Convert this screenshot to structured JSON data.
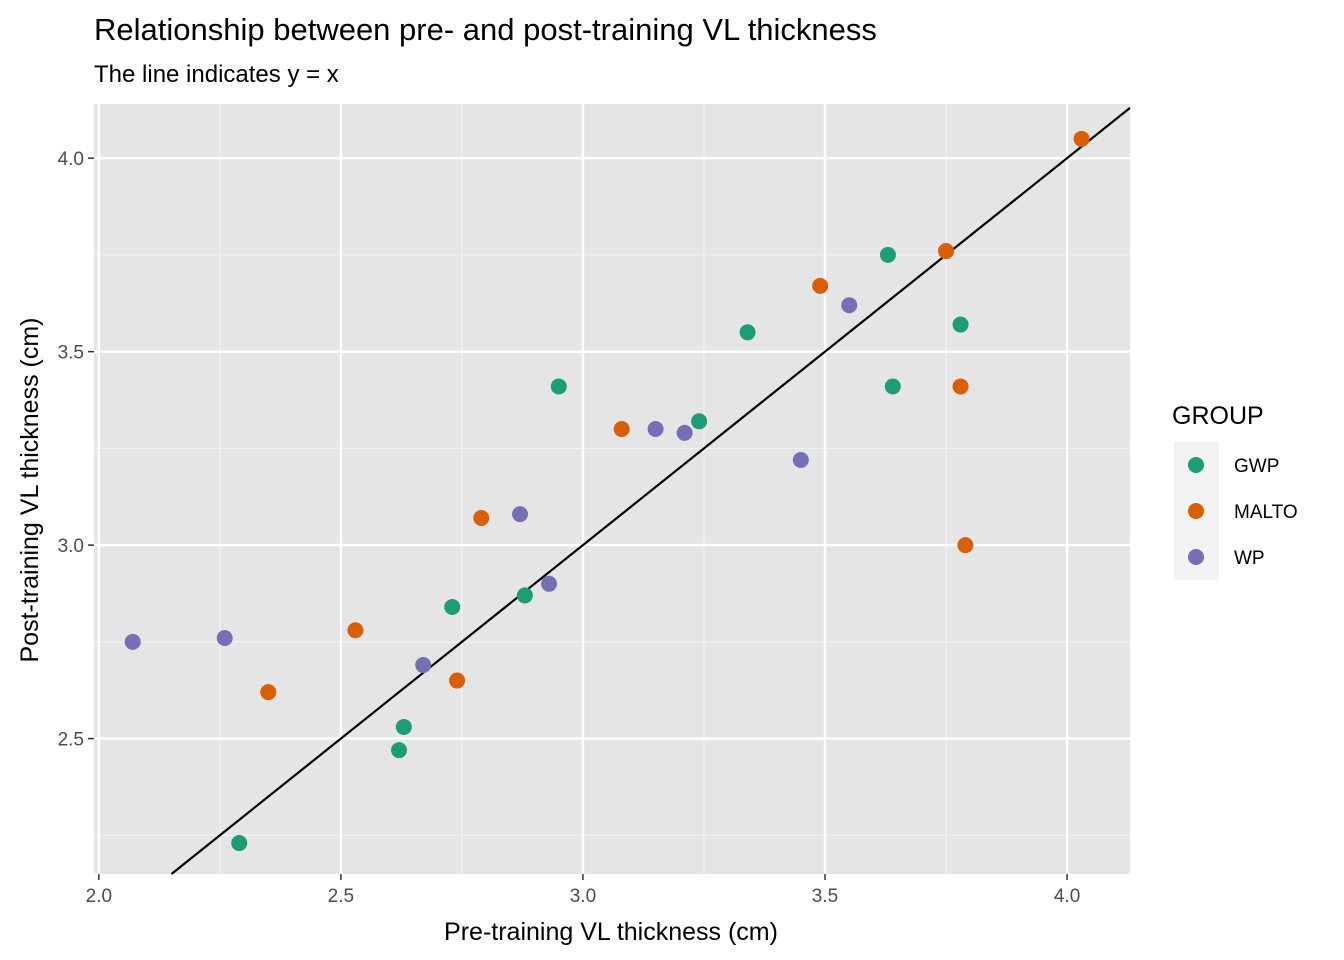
{
  "chart_data": {
    "type": "scatter",
    "title": "Relationship between pre- and post-training VL thickness",
    "subtitle": "The line indicates y = x",
    "xlabel": "Pre-training VL thickness (cm)",
    "ylabel": "Post-training VL thickness (cm)",
    "xlim": [
      1.99,
      4.13
    ],
    "ylim": [
      2.15,
      4.14
    ],
    "x_ticks": [
      2.0,
      2.5,
      3.0,
      3.5,
      4.0
    ],
    "x_tick_labels": [
      "2.0",
      "2.5",
      "3.0",
      "3.5",
      "4.0"
    ],
    "y_ticks": [
      2.5,
      3.0,
      3.5,
      4.0
    ],
    "y_tick_labels": [
      "2.5",
      "3.0",
      "3.5",
      "4.0"
    ],
    "grid": true,
    "legend": {
      "title": "GROUP",
      "position": "right"
    },
    "reference_line": {
      "slope": 1,
      "intercept": 0,
      "color": "#000000"
    },
    "series": [
      {
        "name": "GWP",
        "color": "#1b9e77",
        "points": [
          {
            "x": 2.29,
            "y": 2.23
          },
          {
            "x": 2.62,
            "y": 2.47
          },
          {
            "x": 2.63,
            "y": 2.53
          },
          {
            "x": 2.73,
            "y": 2.84
          },
          {
            "x": 2.88,
            "y": 2.87
          },
          {
            "x": 2.95,
            "y": 3.41
          },
          {
            "x": 3.24,
            "y": 3.32
          },
          {
            "x": 3.34,
            "y": 3.55
          },
          {
            "x": 3.63,
            "y": 3.75
          },
          {
            "x": 3.64,
            "y": 3.41
          },
          {
            "x": 3.78,
            "y": 3.57
          }
        ]
      },
      {
        "name": "MALTO",
        "color": "#d95f02",
        "points": [
          {
            "x": 2.35,
            "y": 2.62
          },
          {
            "x": 2.53,
            "y": 2.78
          },
          {
            "x": 2.74,
            "y": 2.65
          },
          {
            "x": 2.79,
            "y": 3.07
          },
          {
            "x": 3.08,
            "y": 3.3
          },
          {
            "x": 3.49,
            "y": 3.67
          },
          {
            "x": 3.75,
            "y": 3.76
          },
          {
            "x": 3.78,
            "y": 3.41
          },
          {
            "x": 3.79,
            "y": 3.0
          },
          {
            "x": 4.03,
            "y": 4.05
          }
        ]
      },
      {
        "name": "WP",
        "color": "#7570b3",
        "points": [
          {
            "x": 2.07,
            "y": 2.75
          },
          {
            "x": 2.26,
            "y": 2.76
          },
          {
            "x": 2.67,
            "y": 2.69
          },
          {
            "x": 2.87,
            "y": 3.08
          },
          {
            "x": 2.93,
            "y": 2.9
          },
          {
            "x": 3.15,
            "y": 3.3
          },
          {
            "x": 3.21,
            "y": 3.29
          },
          {
            "x": 3.45,
            "y": 3.22
          },
          {
            "x": 3.55,
            "y": 3.62
          }
        ]
      }
    ]
  }
}
